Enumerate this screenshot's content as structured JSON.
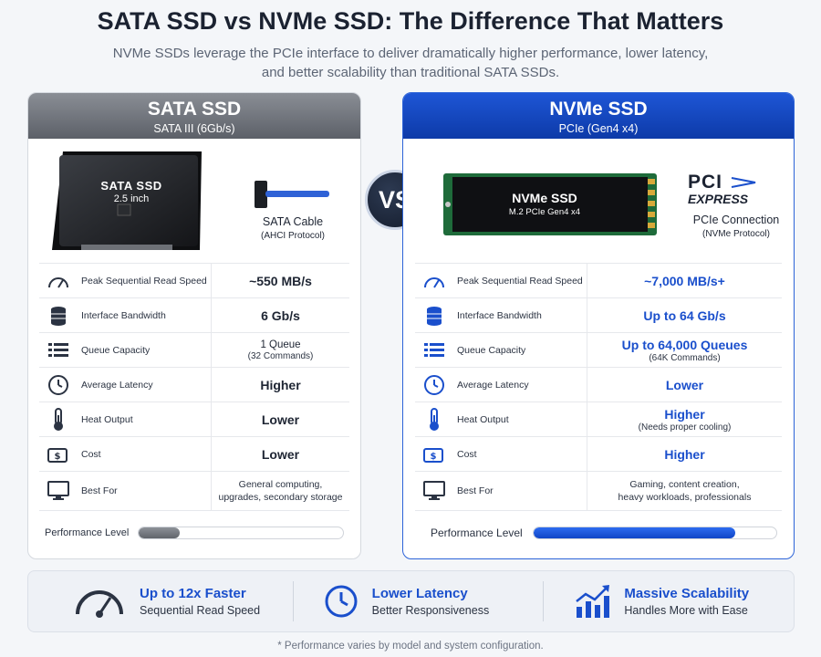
{
  "header": {
    "title": "SATA SSD vs NVMe SSD: The Difference That Matters",
    "subtitle_line1": "NVMe SSDs leverage the PCIe interface to deliver dramatically higher performance, lower latency,",
    "subtitle_line2": "and better scalability than traditional SATA SSDs."
  },
  "vs_label": "VS",
  "sata": {
    "title": "SATA SSD",
    "subtitle": "SATA III (6Gb/s)",
    "drive_label_line1": "SATA SSD",
    "drive_label_line2": "2.5 inch",
    "connector_label": "SATA Cable",
    "connector_sub": "(AHCI Protocol)",
    "rows": [
      {
        "icon": "speedometer-icon",
        "label": "Peak Sequential Read Speed",
        "value": "~550 MB/s",
        "sub": ""
      },
      {
        "icon": "database-icon",
        "label": "Interface Bandwidth",
        "value": "6 Gb/s",
        "sub": ""
      },
      {
        "icon": "list-icon",
        "label": "Queue Capacity",
        "value": "1 Queue",
        "sub": "(32 Commands)"
      },
      {
        "icon": "clock-icon",
        "label": "Average Latency",
        "value": "Higher",
        "sub": ""
      },
      {
        "icon": "thermometer-icon",
        "label": "Heat Output",
        "value": "Lower",
        "sub": ""
      },
      {
        "icon": "money-icon",
        "label": "Cost",
        "value": "Lower",
        "sub": ""
      },
      {
        "icon": "monitor-icon",
        "label": "Best For",
        "value_line1": "General computing,",
        "value_line2": "upgrades, secondary storage"
      }
    ],
    "performance_label": "Performance Level",
    "performance_fraction": 0.2
  },
  "nvme": {
    "title": "NVMe SSD",
    "subtitle": "PCIe (Gen4 x4)",
    "drive_label_line1": "NVMe SSD",
    "drive_label_line2": "M.2 PCIe Gen4 x4",
    "logo_line1": "PCI",
    "logo_line2": "EXPRESS",
    "connector_label": "PCIe Connection",
    "connector_sub": "(NVMe Protocol)",
    "rows": [
      {
        "icon": "speedometer-icon",
        "label": "Peak Sequential Read Speed",
        "value": "~7,000 MB/s+",
        "sub": ""
      },
      {
        "icon": "database-icon",
        "label": "Interface Bandwidth",
        "value": "Up to 64 Gb/s",
        "sub": ""
      },
      {
        "icon": "list-icon",
        "label": "Queue Capacity",
        "value": "Up to 64,000 Queues",
        "sub": "(64K Commands)"
      },
      {
        "icon": "clock-icon",
        "label": "Average Latency",
        "value": "Lower",
        "sub": ""
      },
      {
        "icon": "thermometer-icon",
        "label": "Heat Output",
        "value": "Higher",
        "sub": "(Needs proper cooling)"
      },
      {
        "icon": "money-icon",
        "label": "Cost",
        "value": "Higher",
        "sub": ""
      },
      {
        "icon": "monitor-icon",
        "label": "Best For",
        "value_line1": "Gaming, content creation,",
        "value_line2": "heavy workloads, professionals"
      }
    ],
    "performance_label": "Performance Level",
    "performance_fraction": 0.83
  },
  "features": [
    {
      "icon": "gauge-icon",
      "title": "Up to 12x Faster",
      "subtitle": "Sequential Read Speed"
    },
    {
      "icon": "clock-icon",
      "title": "Lower Latency",
      "subtitle": "Better Responsiveness"
    },
    {
      "icon": "growth-chart-icon",
      "title": "Massive Scalability",
      "subtitle": "Handles More with Ease"
    }
  ],
  "footnote": "* Performance varies by model and system configuration.",
  "colors": {
    "accent": "#1a4fcc",
    "sata_gray": "#5c6068",
    "nvme_blue": "#0d3aa8"
  }
}
